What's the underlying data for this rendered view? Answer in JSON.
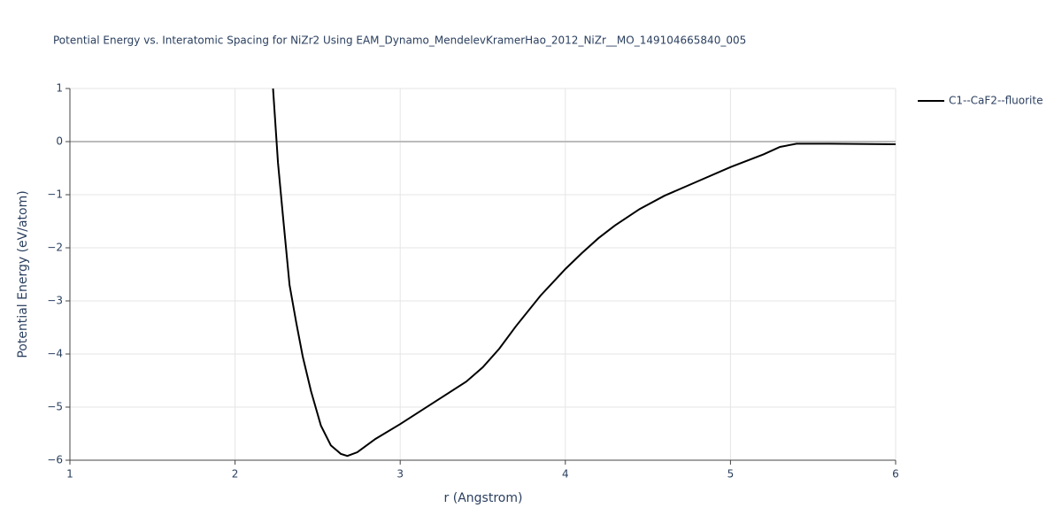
{
  "chart_data": {
    "type": "line",
    "title": "Potential Energy vs. Interatomic Spacing for NiZr2 Using EAM_Dynamo_MendelevKramerHao_2012_NiZr__MO_149104665840_005",
    "x_label": "r (Angstrom)",
    "y_label": "Potential Energy (eV/atom)",
    "xlim": [
      1,
      6
    ],
    "ylim": [
      -6,
      1
    ],
    "xticks": [
      1,
      2,
      3,
      4,
      5,
      6
    ],
    "yticks": [
      {
        "value": -6,
        "label": "−6"
      },
      {
        "value": -5,
        "label": "−5"
      },
      {
        "value": -4,
        "label": "−4"
      },
      {
        "value": -3,
        "label": "−3"
      },
      {
        "value": -2,
        "label": "−2"
      },
      {
        "value": -1,
        "label": "−1"
      },
      0,
      1
    ],
    "grid": true,
    "legend": "right",
    "x": [
      2.23,
      2.26,
      2.29,
      2.33,
      2.37,
      2.41,
      2.46,
      2.52,
      2.58,
      2.64,
      2.68,
      2.74,
      2.85,
      3.0,
      3.2,
      3.4,
      3.5,
      3.6,
      3.7,
      3.85,
      4.0,
      4.1,
      4.2,
      4.3,
      4.45,
      4.6,
      4.8,
      5.0,
      5.2,
      5.3,
      5.4,
      5.6,
      6.0
    ],
    "series": [
      {
        "name": "C1--CaF2--fluorite",
        "color": "#000000",
        "values": [
          1.0,
          -0.4,
          -1.4,
          -2.7,
          -3.4,
          -4.05,
          -4.7,
          -5.35,
          -5.72,
          -5.88,
          -5.92,
          -5.85,
          -5.6,
          -5.32,
          -4.92,
          -4.52,
          -4.25,
          -3.9,
          -3.48,
          -2.9,
          -2.4,
          -2.1,
          -1.82,
          -1.58,
          -1.27,
          -1.02,
          -0.75,
          -0.48,
          -0.24,
          -0.1,
          -0.04,
          -0.04,
          -0.05
        ]
      }
    ]
  }
}
